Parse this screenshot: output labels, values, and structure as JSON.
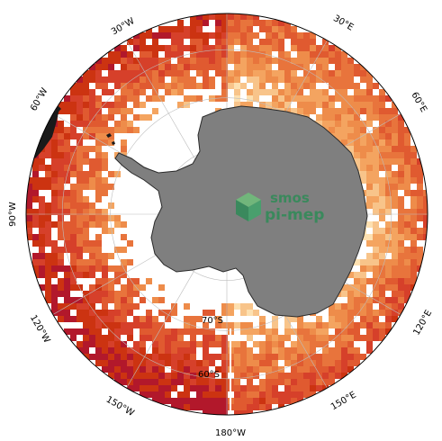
{
  "map": {
    "projection": "south-polar-stereographic",
    "colors": {
      "background": "#ffffff",
      "land": "#7f7f7f",
      "land_outline": "#2a2a2a",
      "grid": "#bdbdbd",
      "other_land": "#1a1a1a",
      "palette": [
        "#b2182b",
        "#cc3311",
        "#d6402a",
        "#e05a30",
        "#e8743c",
        "#ee8c4a",
        "#f4a460",
        "#f8c48a",
        "#fde0b0"
      ]
    },
    "lon_labels": [
      {
        "id": "30w",
        "text": "30°W"
      },
      {
        "id": "30e",
        "text": "30°E"
      },
      {
        "id": "60w",
        "text": "60°W"
      },
      {
        "id": "60e",
        "text": "60°E"
      },
      {
        "id": "90w",
        "text": "90°W"
      },
      {
        "id": "120w",
        "text": "120°W"
      },
      {
        "id": "120e",
        "text": "120°E"
      },
      {
        "id": "150w",
        "text": "150°W"
      },
      {
        "id": "150e",
        "text": "150°E"
      },
      {
        "id": "180w",
        "text": "180°W"
      }
    ],
    "lat_labels": [
      {
        "id": "70s",
        "text": "70°S"
      },
      {
        "id": "60s",
        "text": "60°S"
      }
    ],
    "logo": {
      "line1": "smos",
      "line2": "pi-mep"
    }
  }
}
